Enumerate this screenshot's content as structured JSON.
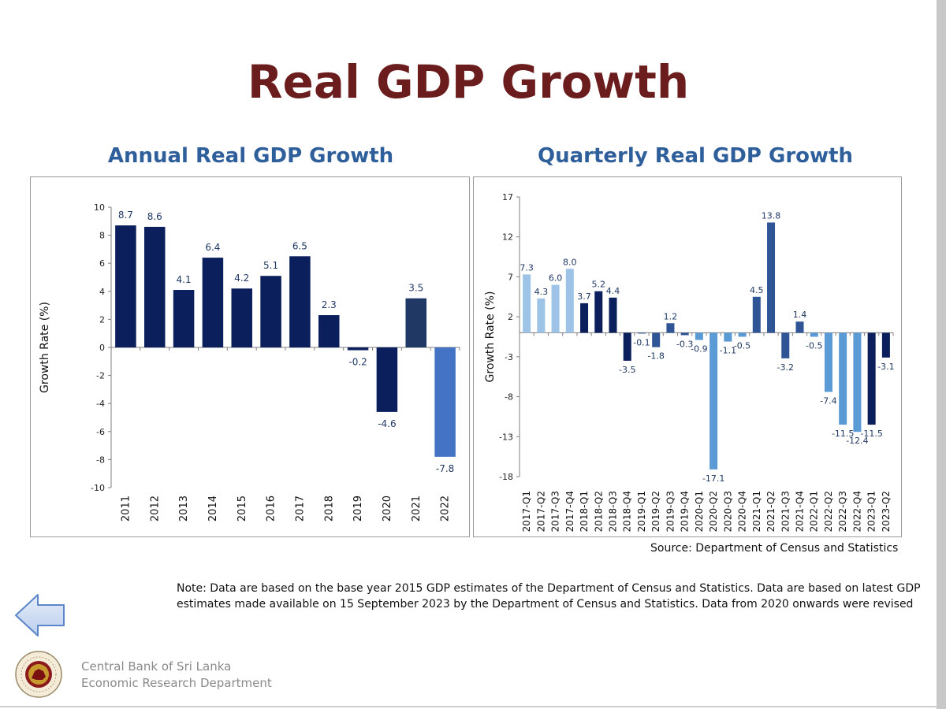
{
  "page": {
    "title": "Real GDP Growth",
    "source": "Source: Department of Census and Statistics",
    "note": "Note:  Data are based on the base year 2015 GDP estimates of the Department of Census and Statistics. Data are based on latest GDP estimates made available on 15 September 2023 by the Department of Census and Statistics. Data from 2020 onwards were revised",
    "org": {
      "line1": "Central Bank of Sri Lanka",
      "line2": "Economic Research Department"
    },
    "nav": {
      "back_icon": "left-arrow-icon"
    },
    "logo_icon": "central-bank-seal-icon"
  },
  "chart_data": [
    {
      "type": "bar",
      "title": "Annual Real GDP Growth",
      "ylabel": "Growth Rate (%)",
      "ylim": [
        -10,
        10
      ],
      "yticks": [
        10,
        8,
        6,
        4,
        2,
        0,
        -2,
        -4,
        -6,
        -8,
        -10
      ],
      "categories": [
        "2011",
        "2012",
        "2013",
        "2014",
        "2015",
        "2016",
        "2017",
        "2018",
        "2019",
        "2020",
        "2021",
        "2022"
      ],
      "values": [
        8.7,
        8.6,
        4.1,
        6.4,
        4.2,
        5.1,
        6.5,
        2.3,
        -0.2,
        -4.6,
        3.5,
        -7.8
      ],
      "labels": [
        "8.7",
        "8.6",
        "4.1",
        "6.4",
        "4.2",
        "5.1",
        "6.5",
        "2.3",
        "-0.2",
        "-4.6",
        "3.5",
        "-7.8"
      ],
      "colors": [
        "#0b1f5c",
        "#0b1f5c",
        "#0b1f5c",
        "#0b1f5c",
        "#0b1f5c",
        "#0b1f5c",
        "#0b1f5c",
        "#0b1f5c",
        "#0b1f5c",
        "#0b1f5c",
        "#1f3864",
        "#4472c4"
      ],
      "grid": false
    },
    {
      "type": "bar",
      "title": "Quarterly Real GDP Growth",
      "ylabel": "Growth Rate (%)",
      "ylim": [
        -18,
        17
      ],
      "yticks": [
        17,
        12,
        7,
        2,
        -3,
        -8,
        -13,
        -18
      ],
      "categories": [
        "2017-Q1",
        "2017-Q2",
        "2017-Q3",
        "2017-Q4",
        "2018-Q1",
        "2018-Q2",
        "2018-Q3",
        "2018-Q4",
        "2019-Q1",
        "2019-Q2",
        "2019-Q3",
        "2019-Q4",
        "2020-Q1",
        "2020-Q2",
        "2020-Q3",
        "2020-Q4",
        "2021-Q1",
        "2021-Q2",
        "2021-Q3",
        "2021-Q4",
        "2022-Q1",
        "2022-Q2",
        "2022-Q3",
        "2022-Q4",
        "2023-Q1",
        "2023-Q2"
      ],
      "values": [
        7.3,
        4.3,
        6.0,
        8.0,
        3.7,
        5.2,
        4.4,
        -3.5,
        -0.1,
        -1.8,
        1.2,
        -0.3,
        -0.9,
        -17.1,
        -1.1,
        -0.5,
        4.5,
        13.8,
        -3.2,
        1.4,
        -0.5,
        -7.4,
        -11.5,
        -12.4,
        -11.5,
        -3.1
      ],
      "labels": [
        "7.3",
        "4.3",
        "6.0",
        "8.0",
        "3.7",
        "5.2",
        "4.4",
        "-3.5",
        "-0.1",
        "-1.8",
        "1.2",
        "-0.3",
        "-0.9",
        "-17.1",
        "-1.1",
        "-0.5",
        "4.5",
        "13.8",
        "-3.2",
        "1.4",
        "-0.5",
        "-7.4",
        "-11.5",
        "-12.4",
        "-11.5",
        "-3.1"
      ],
      "colors": [
        "#9dc3e6",
        "#9dc3e6",
        "#9dc3e6",
        "#9dc3e6",
        "#0b1f5c",
        "#0b1f5c",
        "#0b1f5c",
        "#0b1f5c",
        "#2f5597",
        "#2f5597",
        "#2f5597",
        "#2f5597",
        "#5b9bd5",
        "#5b9bd5",
        "#5b9bd5",
        "#5b9bd5",
        "#2f5597",
        "#2f5597",
        "#2f5597",
        "#2f5597",
        "#5b9bd5",
        "#5b9bd5",
        "#5b9bd5",
        "#5b9bd5",
        "#0b1f5c",
        "#0b1f5c"
      ],
      "grid": false
    }
  ]
}
